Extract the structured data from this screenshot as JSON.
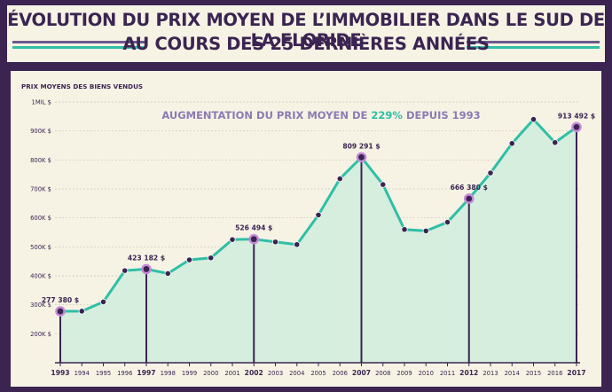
{
  "header": {
    "title_line1": "ÉVOLUTION DU PRIX MOYEN DE L’IMMOBILIER DANS LE SUD DE LA FLORIDE",
    "title_line2": "AU COURS DES 25 DERNIÈRES ANNÉES"
  },
  "colors": {
    "background": "#3b2452",
    "panel": "#f6f3e4",
    "line": "#2fbfa6",
    "area_fill": "#d5eede",
    "marker_fill": "#3b2452",
    "highlight_marker": "#c58ad8",
    "text": "#3b2452",
    "annotation": "#8a7cb4",
    "annotation_highlight": "#2fbfa6"
  },
  "chart_data": {
    "type": "area",
    "ylabel": "PRIX MOYENS DES BIENS VENDUS",
    "xlabel": "",
    "annotation": {
      "prefix": "AUGMENTATION DU PRIX MOYEN DE ",
      "highlight": "229%",
      "suffix": " DEPUIS 1993"
    },
    "ylim": [
      100000,
      1000000
    ],
    "yticks": [
      200000,
      300000,
      400000,
      500000,
      600000,
      700000,
      800000,
      900000,
      1000000
    ],
    "ytick_labels": [
      "200K $",
      "300K $",
      "400K $",
      "500K $",
      "600K $",
      "700K $",
      "800K $",
      "900K $",
      "1MIL $"
    ],
    "x": [
      1993,
      1994,
      1995,
      1996,
      1997,
      1998,
      1999,
      2000,
      2001,
      2002,
      2003,
      2004,
      2005,
      2006,
      2007,
      2008,
      2009,
      2010,
      2011,
      2012,
      2013,
      2014,
      2015,
      2016,
      2017
    ],
    "x_labels": [
      "1993",
      "1994",
      "1995",
      "1996",
      "1997",
      "1998",
      "1999",
      "2000",
      "2001",
      "2002",
      "2003",
      "2004",
      "2005",
      "2006",
      "2007",
      "2008",
      "2009",
      "2010",
      "2011",
      "2012",
      "2013",
      "2014",
      "2015",
      "2016",
      "2017"
    ],
    "values": [
      277380,
      278000,
      310000,
      418000,
      423182,
      408000,
      455000,
      462000,
      525000,
      526494,
      517000,
      508000,
      610000,
      735000,
      809291,
      715000,
      560000,
      555000,
      585000,
      666380,
      755000,
      857000,
      940000,
      860000,
      913492
    ],
    "highlighted_years": [
      1993,
      1997,
      2002,
      2007,
      2012,
      2017
    ],
    "data_labels": [
      {
        "year": 1993,
        "text": "277 380 $"
      },
      {
        "year": 1997,
        "text": "423 182 $"
      },
      {
        "year": 2002,
        "text": "526 494 $"
      },
      {
        "year": 2007,
        "text": "809 291 $"
      },
      {
        "year": 2012,
        "text": "666 380 $"
      },
      {
        "year": 2017,
        "text": "913 492 $"
      }
    ],
    "grid": true
  }
}
